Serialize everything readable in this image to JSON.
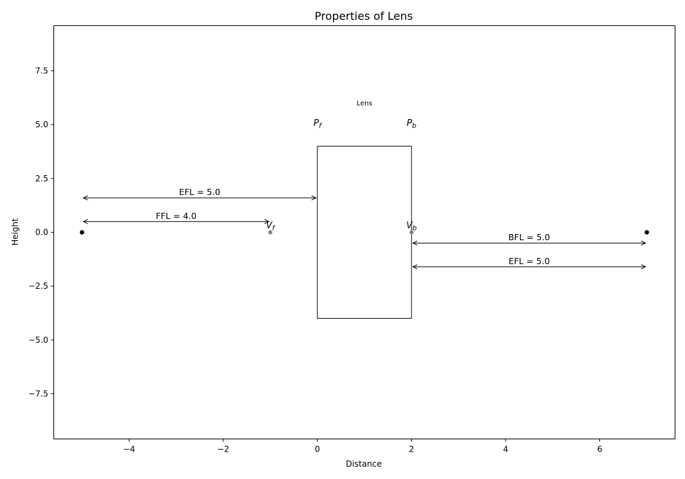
{
  "chart_data": {
    "type": "diagram",
    "title": "Properties of Lens",
    "xlabel": "Distance",
    "ylabel": "Height",
    "xlim": [
      -5.6,
      7.6
    ],
    "ylim": [
      -9.6,
      9.6
    ],
    "xticks": [
      -4,
      -2,
      0,
      2,
      4,
      6
    ],
    "xtick_labels": [
      "−4",
      "−2",
      "0",
      "2",
      "4",
      "6"
    ],
    "yticks": [
      -7.5,
      -5.0,
      -2.5,
      0.0,
      2.5,
      5.0,
      7.5
    ],
    "ytick_labels": [
      "−7.5",
      "−5.0",
      "−2.5",
      "0.0",
      "2.5",
      "5.0",
      "7.5"
    ],
    "lens": {
      "label": "Lens",
      "x_front": 0,
      "x_back": 2,
      "y_bottom": -4,
      "y_top": 4,
      "label_position": [
        1,
        6
      ]
    },
    "principal_planes": [
      {
        "name": "P",
        "sub": "f",
        "x": 0,
        "label_y": 5
      },
      {
        "name": "P",
        "sub": "b",
        "x": 2,
        "label_y": 5
      }
    ],
    "focal_points": [
      {
        "x": -5,
        "y": 0,
        "color": "#000000"
      },
      {
        "x": 7,
        "y": 0,
        "color": "#000000"
      }
    ],
    "vertices": [
      {
        "name": "V",
        "sub": "f",
        "x": -1,
        "y": 0,
        "color": "#808080"
      },
      {
        "name": "V",
        "sub": "b",
        "x": 2,
        "y": 0,
        "color": "#808080"
      }
    ],
    "dimensions": [
      {
        "label": "EFL = 5.0",
        "x1": -5,
        "x2": 0,
        "y": 1.6
      },
      {
        "label": "FFL = 4.0",
        "x1": -5,
        "x2": -1,
        "y": 0.5
      },
      {
        "label": "BFL = 5.0",
        "x1": 2,
        "x2": 7,
        "y": -0.5
      },
      {
        "label": "EFL = 5.0",
        "x1": 2,
        "x2": 7,
        "y": -1.6
      }
    ]
  }
}
